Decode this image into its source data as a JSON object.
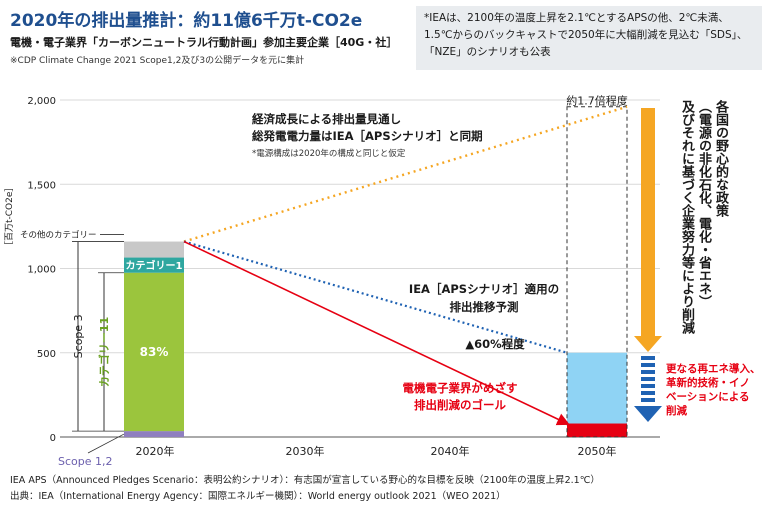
{
  "header": {
    "title": "2020年の排出量推計：約11億6千万t-CO2e",
    "subtitle": "電機・電子業界「カーボンニュートラル行動計画」参加主要企業［40G・社］",
    "source_note": "※CDP Climate Change 2021 Scope1,2及び3の公開データを元に集計"
  },
  "iea_note": "*IEAは、2100年の温度上昇を2.1℃とするAPSの他、2℃未満、1.5℃からのバックキャストで2050年に大幅削減を見込む「SDS」、「NZE」のシナリオも公表",
  "chart_data": {
    "type": "bar",
    "ylabel": "［百万t-CO2e］",
    "ylim": [
      0,
      2000
    ],
    "yticks": [
      "0",
      "500",
      "1,000",
      "1,500",
      "2,000"
    ],
    "ytick_values": [
      0,
      500,
      1000,
      1500,
      2000
    ],
    "categories": [
      "2020年",
      "2030年",
      "2040年",
      "2050年"
    ],
    "x_values": [
      2020,
      2030,
      2040,
      2050
    ],
    "bar_2020": {
      "scope12": 35,
      "category11": 940,
      "category1": 90,
      "other": 95,
      "total": 1160,
      "label_pct": "83%",
      "label_cat1": "カテゴリー1",
      "label_other": "その他のカテゴリー",
      "label_scope12": "Scope 1,2",
      "label_scope3": "Scope 3",
      "label_cat11": "カテゴリー11"
    },
    "series": [
      {
        "name": "経済成長による排出量見通し",
        "x": [
          2020,
          2050
        ],
        "y": [
          1160,
          1960
        ]
      },
      {
        "name": "IEA［APSシナリオ］適用の排出推移予測",
        "x": [
          2020,
          2050
        ],
        "y": [
          1160,
          500
        ]
      },
      {
        "name": "電機電子業界がめざす排出削減のゴール",
        "x": [
          2020,
          2050
        ],
        "y": [
          1160,
          80
        ]
      }
    ],
    "bar_2050_aps": 500,
    "bar_2050_goal": 80,
    "bar_2050_growth": 1960,
    "annotations": {
      "growth_line1": "経済成長による排出量見通し",
      "growth_line2": "総発電電力量はIEA［APSシナリオ］と同期",
      "growth_note": "*電源構成は2020年の構成と同じと仮定",
      "ratio": "約1.7倍程度",
      "aps_line1": "IEA［APSシナリオ］適用の",
      "aps_line2": "排出推移予測",
      "reduction": "▲60%程度",
      "goal_line1": "電機電子業界がめざす",
      "goal_line2": "排出削減のゴール",
      "policy_col1": "各国の野心的な政策",
      "policy_col2": "（電源の非化石化、電化・省エネ）",
      "policy_col3": "及びそれに基づく企業努力等により削減",
      "innov1": "更なる再エネ導入、",
      "innov2": "革新的技術・イノ",
      "innov3": "ベーションによる",
      "innov4": "削減"
    },
    "colors": {
      "scope12": "#8f7fbf",
      "category11": "#9bc53d",
      "category1": "#2fa7a0",
      "other": "#c8c8c8",
      "growth_line": "#f5a623",
      "aps_line": "#1f62b3",
      "goal_line": "#e60012",
      "aps_bar": "#8fd3f4",
      "goal_bar": "#e60012",
      "policy_arrow": "#f5a623",
      "innov_arrow": "#1f62b3"
    }
  },
  "footnotes": [
    "IEA APS（Announced Pledges Scenario：表明公約シナリオ）：有志国が宣言している野心的な目標を反映（2100年の温度上昇2.1℃）",
    "出典：IEA（International Energy Agency：国際エネルギー機関）：World energy outlook 2021（WEO 2021）"
  ]
}
